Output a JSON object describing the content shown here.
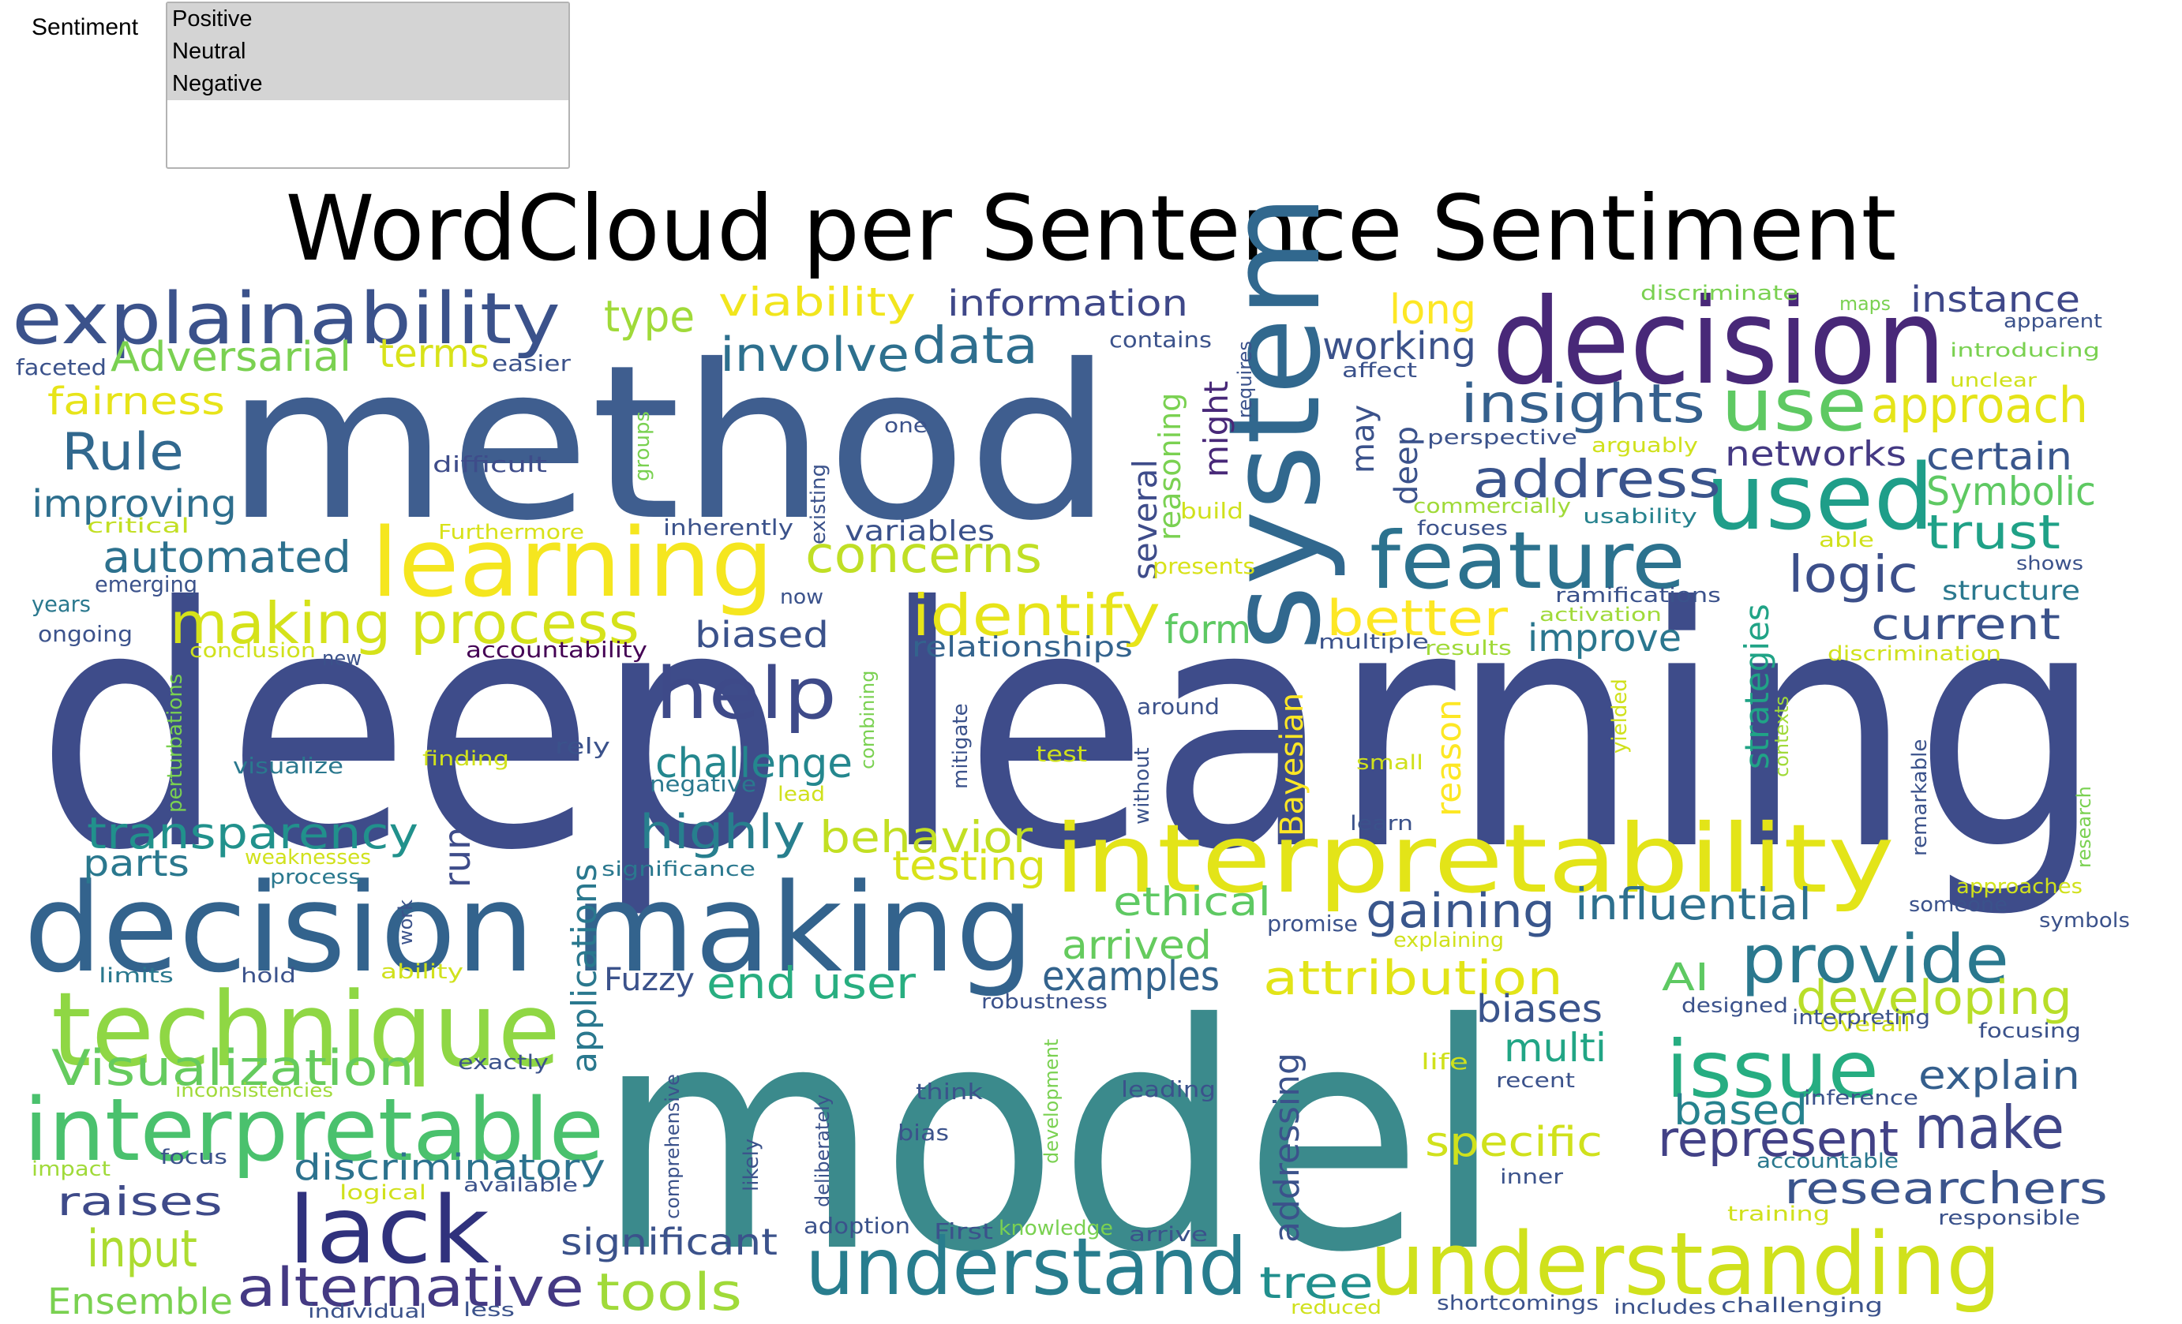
{
  "filter": {
    "label": "Sentiment",
    "options": [
      "Positive",
      "Neutral",
      "Negative"
    ]
  },
  "chart_data": {
    "type": "wordcloud",
    "title": "WordCloud per Sentence Sentiment",
    "words": [
      {
        "text": "deep learning",
        "color": "#3e4c8a"
      },
      {
        "text": "model",
        "color": "#3b8a8c"
      },
      {
        "text": "method",
        "color": "#3f5e8f"
      },
      {
        "text": "decision",
        "color": "#482878"
      },
      {
        "text": "system",
        "color": "#31688e"
      },
      {
        "text": "decision making",
        "color": "#33638d"
      },
      {
        "text": "interpretability",
        "color": "#e3e418"
      },
      {
        "text": "learning",
        "color": "#f5e61f"
      },
      {
        "text": "technique",
        "color": "#8fd744"
      },
      {
        "text": "interpretable",
        "color": "#4ac16d"
      },
      {
        "text": "understanding",
        "color": "#d0e11c"
      },
      {
        "text": "used",
        "color": "#1f9e89"
      },
      {
        "text": "use",
        "color": "#5ec962"
      },
      {
        "text": "issue",
        "color": "#26ad81"
      },
      {
        "text": "feature",
        "color": "#2c728e"
      },
      {
        "text": "understand",
        "color": "#287d8e"
      },
      {
        "text": "lack",
        "color": "#30327d"
      },
      {
        "text": "help",
        "color": "#3e4a89"
      },
      {
        "text": "explainability",
        "color": "#3b528b"
      },
      {
        "text": "making process",
        "color": "#d5e21a"
      },
      {
        "text": "provide",
        "color": "#2a788e"
      },
      {
        "text": "insights",
        "color": "#35608d"
      },
      {
        "text": "address",
        "color": "#3a548c"
      },
      {
        "text": "attribution",
        "color": "#e2e418"
      },
      {
        "text": "identify",
        "color": "#e7e419"
      },
      {
        "text": "alternative",
        "color": "#443983"
      },
      {
        "text": "concerns",
        "color": "#c0df25"
      },
      {
        "text": "Visualization",
        "color": "#65cb5e"
      },
      {
        "text": "developing",
        "color": "#b8de29"
      },
      {
        "text": "researchers",
        "color": "#3a548c"
      },
      {
        "text": "make",
        "color": "#404688"
      },
      {
        "text": "represent",
        "color": "#424186"
      },
      {
        "text": "Rule",
        "color": "#31688e"
      },
      {
        "text": "approach",
        "color": "#e5e419"
      },
      {
        "text": "data",
        "color": "#2e6e8e"
      },
      {
        "text": "involve",
        "color": "#2d708e"
      },
      {
        "text": "transparency",
        "color": "#21918c"
      },
      {
        "text": "highly",
        "color": "#277f8e"
      },
      {
        "text": "tools",
        "color": "#a0da39"
      },
      {
        "text": "Adversarial",
        "color": "#7ad151"
      },
      {
        "text": "automated",
        "color": "#2d718e"
      },
      {
        "text": "input",
        "color": "#addc30"
      },
      {
        "text": "logic",
        "color": "#3c4f8a"
      },
      {
        "text": "trust",
        "color": "#1fa187"
      },
      {
        "text": "current",
        "color": "#3b528b"
      },
      {
        "text": "Symbolic",
        "color": "#5ec962"
      },
      {
        "text": "instance",
        "color": "#3f4889"
      },
      {
        "text": "better",
        "color": "#fde725"
      },
      {
        "text": "gaining",
        "color": "#39568c"
      },
      {
        "text": "influential",
        "color": "#2d708e"
      },
      {
        "text": "explain",
        "color": "#355f8d"
      },
      {
        "text": "multi",
        "color": "#21a585"
      },
      {
        "text": "biases",
        "color": "#3a548c"
      },
      {
        "text": "end user",
        "color": "#28ae80"
      },
      {
        "text": "examples",
        "color": "#33638d"
      },
      {
        "text": "arrived",
        "color": "#65cb5e"
      },
      {
        "text": "ethical",
        "color": "#5ec962"
      },
      {
        "text": "behavior",
        "color": "#c2df23"
      },
      {
        "text": "testing",
        "color": "#d8e219"
      },
      {
        "text": "challenge",
        "color": "#24878e"
      },
      {
        "text": "biased",
        "color": "#3b528b"
      },
      {
        "text": "information",
        "color": "#3f4889"
      },
      {
        "text": "viability",
        "color": "#f1e51d"
      },
      {
        "text": "type",
        "color": "#a0da39"
      },
      {
        "text": "terms",
        "color": "#d8e219"
      },
      {
        "text": "fairness",
        "color": "#e7e419"
      },
      {
        "text": "improving",
        "color": "#2e6f8e"
      },
      {
        "text": "improve",
        "color": "#2a768e"
      },
      {
        "text": "working",
        "color": "#3b528b"
      },
      {
        "text": "long",
        "color": "#fde725"
      },
      {
        "text": "networks",
        "color": "#443983"
      },
      {
        "text": "certain",
        "color": "#39568c"
      },
      {
        "text": "based",
        "color": "#26828e"
      },
      {
        "text": "raises",
        "color": "#3e4a89"
      },
      {
        "text": "discriminatory",
        "color": "#2c728e"
      },
      {
        "text": "significant",
        "color": "#3b528b"
      },
      {
        "text": "Ensemble",
        "color": "#7ad151"
      },
      {
        "text": "parts",
        "color": "#2a788e"
      },
      {
        "text": "run",
        "color": "#3e4c8a"
      },
      {
        "text": "tree",
        "color": "#218f8d"
      },
      {
        "text": "form",
        "color": "#5ec962"
      },
      {
        "text": "specific",
        "color": "#d0e11c"
      },
      {
        "text": "AI",
        "color": "#5ec962"
      },
      {
        "text": "Fuzzy",
        "color": "#3b528b"
      },
      {
        "text": "applications",
        "color": "#2a788e"
      },
      {
        "text": "addressing",
        "color": "#3b528b"
      },
      {
        "text": "strategies",
        "color": "#20a386"
      },
      {
        "text": "reason",
        "color": "#fde725"
      },
      {
        "text": "Bayesian",
        "color": "#fde725"
      },
      {
        "text": "several",
        "color": "#3e4c8a"
      },
      {
        "text": "reasoning",
        "color": "#7ad151"
      },
      {
        "text": "might",
        "color": "#482878"
      },
      {
        "text": "may",
        "color": "#3b528b"
      },
      {
        "text": "deep",
        "color": "#3b528b"
      },
      {
        "text": "variables",
        "color": "#3b528b"
      },
      {
        "text": "relationships",
        "color": "#33638d"
      },
      {
        "text": "accountability",
        "color": "#440154"
      },
      {
        "text": "emerging",
        "color": "#3b528b"
      },
      {
        "text": "difficult",
        "color": "#3e4c8a"
      },
      {
        "text": "faceted",
        "color": "#3b528b"
      },
      {
        "text": "easier",
        "color": "#3b528b"
      },
      {
        "text": "critical",
        "color": "#c2df23"
      },
      {
        "text": "Furthermore",
        "color": "#d8e219"
      },
      {
        "text": "inherently",
        "color": "#3b528b"
      },
      {
        "text": "existing",
        "color": "#3b528b"
      },
      {
        "text": "groups",
        "color": "#7ad151"
      },
      {
        "text": "one",
        "color": "#3b528b"
      },
      {
        "text": "contains",
        "color": "#3b528b"
      },
      {
        "text": "requires",
        "color": "#3b528b"
      },
      {
        "text": "build",
        "color": "#d0e11c"
      },
      {
        "text": "presents",
        "color": "#d8e219"
      },
      {
        "text": "affect",
        "color": "#3b528b"
      },
      {
        "text": "perspective",
        "color": "#3b528b"
      },
      {
        "text": "arguably",
        "color": "#d0e11c"
      },
      {
        "text": "commercially",
        "color": "#a0da39"
      },
      {
        "text": "focuses",
        "color": "#3b528b"
      },
      {
        "text": "usability",
        "color": "#26828e"
      },
      {
        "text": "able",
        "color": "#d0e11c"
      },
      {
        "text": "ramifications",
        "color": "#3b528b"
      },
      {
        "text": "activation",
        "color": "#a0da39"
      },
      {
        "text": "multiple",
        "color": "#3b528b"
      },
      {
        "text": "results",
        "color": "#a0da39"
      },
      {
        "text": "discriminate",
        "color": "#7ad151"
      },
      {
        "text": "maps",
        "color": "#7ad151"
      },
      {
        "text": "apparent",
        "color": "#3b528b"
      },
      {
        "text": "introducing",
        "color": "#7ad151"
      },
      {
        "text": "unclear",
        "color": "#d0e11c"
      },
      {
        "text": "shows",
        "color": "#3b528b"
      },
      {
        "text": "structure",
        "color": "#2a788e"
      },
      {
        "text": "discrimination",
        "color": "#d0e11c"
      },
      {
        "text": "years",
        "color": "#2a788e"
      },
      {
        "text": "ongoing",
        "color": "#3b528b"
      },
      {
        "text": "conclusion",
        "color": "#d0e11c"
      },
      {
        "text": "new",
        "color": "#3b528b"
      },
      {
        "text": "now",
        "color": "#3b528b"
      },
      {
        "text": "perturbations",
        "color": "#7ad151"
      },
      {
        "text": "visualize",
        "color": "#2a788e"
      },
      {
        "text": "finding",
        "color": "#d0e11c"
      },
      {
        "text": "rely",
        "color": "#3b528b"
      },
      {
        "text": "negative",
        "color": "#2a788e"
      },
      {
        "text": "lead",
        "color": "#d0e11c"
      },
      {
        "text": "combining",
        "color": "#7ad151"
      },
      {
        "text": "mitigate",
        "color": "#3b528b"
      },
      {
        "text": "test",
        "color": "#d0e11c"
      },
      {
        "text": "without",
        "color": "#3b528b"
      },
      {
        "text": "around",
        "color": "#3b528b"
      },
      {
        "text": "yielded",
        "color": "#d0e11c"
      },
      {
        "text": "contexts",
        "color": "#a0da39"
      },
      {
        "text": "small",
        "color": "#d0e11c"
      },
      {
        "text": "learn",
        "color": "#3b528b"
      },
      {
        "text": "remarkable",
        "color": "#3b528b"
      },
      {
        "text": "research",
        "color": "#7ad151"
      },
      {
        "text": "weaknesses",
        "color": "#d0e11c"
      },
      {
        "text": "process",
        "color": "#2a788e"
      },
      {
        "text": "significance",
        "color": "#2a788e"
      },
      {
        "text": "work",
        "color": "#3b528b"
      },
      {
        "text": "promise",
        "color": "#3b528b"
      },
      {
        "text": "explaining",
        "color": "#d0e11c"
      },
      {
        "text": "someone",
        "color": "#3b528b"
      },
      {
        "text": "approaches",
        "color": "#d0e11c"
      },
      {
        "text": "symbols",
        "color": "#3b528b"
      },
      {
        "text": "limits",
        "color": "#2a788e"
      },
      {
        "text": "hold",
        "color": "#3b528b"
      },
      {
        "text": "ability",
        "color": "#d0e11c"
      },
      {
        "text": "robustness",
        "color": "#3b528b"
      },
      {
        "text": "designed",
        "color": "#3b528b"
      },
      {
        "text": "Overall",
        "color": "#d0e11c"
      },
      {
        "text": "interpreting",
        "color": "#3b528b"
      },
      {
        "text": "focusing",
        "color": "#3b528b"
      },
      {
        "text": "exactly",
        "color": "#3b528b"
      },
      {
        "text": "inconsistencies",
        "color": "#a0da39"
      },
      {
        "text": "comprehensive",
        "color": "#3b528b"
      },
      {
        "text": "deliberately",
        "color": "#3b528b"
      },
      {
        "text": "development",
        "color": "#7ad151"
      },
      {
        "text": "think",
        "color": "#3b528b"
      },
      {
        "text": "bias",
        "color": "#3b528b"
      },
      {
        "text": "leading",
        "color": "#3b528b"
      },
      {
        "text": "life",
        "color": "#d0e11c"
      },
      {
        "text": "recent",
        "color": "#3b528b"
      },
      {
        "text": "inference",
        "color": "#3b528b"
      },
      {
        "text": "accountable",
        "color": "#2a788e"
      },
      {
        "text": "impact",
        "color": "#a0da39"
      },
      {
        "text": "focus",
        "color": "#3b528b"
      },
      {
        "text": "available",
        "color": "#3b528b"
      },
      {
        "text": "logical",
        "color": "#d0e11c"
      },
      {
        "text": "likely",
        "color": "#3b528b"
      },
      {
        "text": "inner",
        "color": "#3b528b"
      },
      {
        "text": "training",
        "color": "#d0e11c"
      },
      {
        "text": "responsible",
        "color": "#3b528b"
      },
      {
        "text": "adoption",
        "color": "#3b528b"
      },
      {
        "text": "First",
        "color": "#3b528b"
      },
      {
        "text": "knowledge",
        "color": "#7ad151"
      },
      {
        "text": "arrive",
        "color": "#3b528b"
      },
      {
        "text": "reduced",
        "color": "#d0e11c"
      },
      {
        "text": "shortcomings",
        "color": "#3b528b"
      },
      {
        "text": "includes",
        "color": "#3b528b"
      },
      {
        "text": "challenging",
        "color": "#3b528b"
      },
      {
        "text": "individual",
        "color": "#3b528b"
      },
      {
        "text": "less",
        "color": "#3b528b"
      }
    ]
  }
}
